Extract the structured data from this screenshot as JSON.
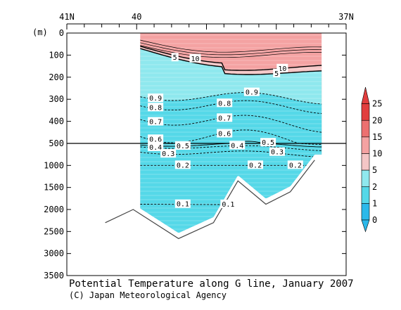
{
  "chart_data": {
    "type": "heatmap",
    "title": "Potential Temperature along G line, January 2007",
    "credit": "(C) Japan Meteorological Agency",
    "x_axis": {
      "ticks": [
        "41N",
        "40",
        "37N"
      ],
      "ticks_at": [
        41,
        40,
        37
      ],
      "range": [
        41,
        37
      ]
    },
    "y_axis": {
      "label": "(m)",
      "upper_ticks": [
        "0",
        "100",
        "200",
        "300",
        "400",
        "500"
      ],
      "upper_range": [
        0,
        500
      ],
      "lower_ticks": [
        "1000",
        "1500",
        "2000",
        "2500",
        "3000",
        "3500"
      ],
      "lower_range": [
        500,
        3500
      ]
    },
    "colorbar": {
      "levels": [
        "0",
        "1",
        "2",
        "5",
        "10",
        "15",
        "20",
        "25"
      ],
      "colors": [
        "#2cb9ea",
        "#55d8e8",
        "#8fe8ee",
        "#f4c6c6",
        "#f4a2a2",
        "#ec7070",
        "#e23e3e"
      ]
    },
    "contours": [
      {
        "value": 10,
        "label": "10",
        "depth_north": 60,
        "depth_south": 140
      },
      {
        "value": 5,
        "label": "5",
        "depth_north": 70,
        "depth_south": 165
      },
      {
        "value": 0.9,
        "label": "0.9",
        "depth_north": 280,
        "depth_south": 300
      },
      {
        "value": 0.8,
        "label": "0.8",
        "depth_north": 320,
        "depth_south": 340
      },
      {
        "value": 0.7,
        "label": "0.7",
        "depth_north": 380,
        "depth_south": 420
      },
      {
        "value": 0.6,
        "label": "0.6",
        "depth_north": 455,
        "depth_south": 490
      },
      {
        "value": 0.5,
        "label": "0.5",
        "depth_north": 520,
        "depth_south": 540
      },
      {
        "value": 0.4,
        "label": "0.4",
        "depth_north": 560,
        "depth_south": 620
      },
      {
        "value": 0.3,
        "label": "0.3",
        "depth_north": 680,
        "depth_south": 760
      },
      {
        "value": 0.2,
        "label": "0.2",
        "depth_north": 1000,
        "depth_south": 1000
      },
      {
        "value": 0.1,
        "label": "0.1",
        "depth_north": 1880,
        "depth_south": 1900
      }
    ],
    "section": {
      "lat_north": 39.95,
      "lat_south": 37.35
    },
    "bottom_line": [
      {
        "lat": 40.45,
        "depth": 2300
      },
      {
        "lat": 40.05,
        "depth": 2000
      },
      {
        "lat": 39.4,
        "depth": 2660
      },
      {
        "lat": 38.9,
        "depth": 2300
      },
      {
        "lat": 38.55,
        "depth": 1350
      },
      {
        "lat": 38.15,
        "depth": 1880
      },
      {
        "lat": 37.8,
        "depth": 1600
      },
      {
        "lat": 37.45,
        "depth": 880
      }
    ]
  }
}
